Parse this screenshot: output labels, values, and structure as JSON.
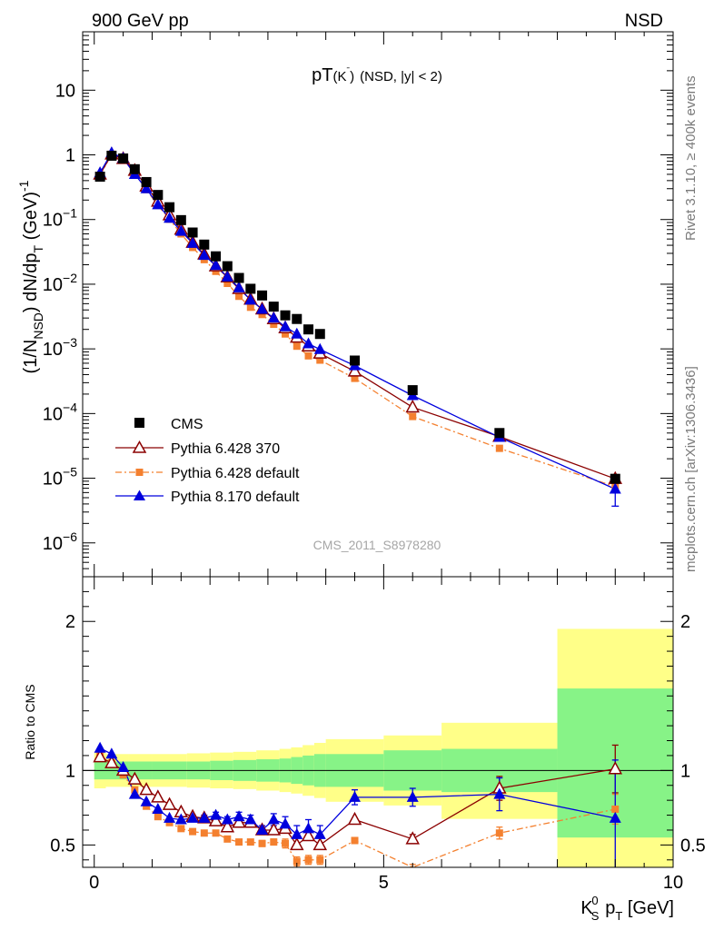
{
  "header": {
    "left_label": "900 GeV pp",
    "right_label": "NSD"
  },
  "side_labels": {
    "rivet": "Rivet 3.1.10, ≥ 400k events",
    "mcplots": "mcplots.cern.ch [arXiv:1306.3436]"
  },
  "colors": {
    "cms": "#000000",
    "pythia6_370": "#8b0000",
    "pythia6_default": "#f4802f",
    "pythia8_default": "#0000dd",
    "band_inner": "#87f387",
    "band_outer": "#ffff88"
  },
  "chart_data": [
    {
      "id": "main",
      "type": "scatter",
      "title": "pT(Kˉ) (NSD, |y| < 2)",
      "title_main": "pT",
      "title_particle": "(K",
      "title_particle_sup": "ˉ",
      "title_particle_close": ")",
      "title_selection": "(NSD, |y| < 2)",
      "ylabel": "(1/N_NSD) dN/dp_T (GeV)^-1",
      "ylabel_parts": {
        "a": "(1/N",
        "a_sub": "NSD",
        "b": ") dN/dp",
        "b_sub": "T",
        "c": " (GeV)",
        "c_sup": "-1"
      },
      "yscale": "log",
      "ylim": [
        3e-07,
        80
      ],
      "xlim": [
        -0.2,
        10
      ],
      "y_ticks": [
        {
          "v": 10,
          "base": "10",
          "exp": ""
        },
        {
          "v": 1,
          "base": "1",
          "exp": ""
        },
        {
          "v": 0.1,
          "base": "10",
          "exp": "−1"
        },
        {
          "v": 0.01,
          "base": "10",
          "exp": "−2"
        },
        {
          "v": 0.001,
          "base": "10",
          "exp": "−3"
        },
        {
          "v": 0.0001,
          "base": "10",
          "exp": "−4"
        },
        {
          "v": 1e-05,
          "base": "10",
          "exp": "−5"
        },
        {
          "v": 1e-06,
          "base": "10",
          "exp": "−6"
        }
      ],
      "watermark": "CMS_2011_S8978280",
      "legend_position": "lower-left",
      "x": [
        0.1,
        0.3,
        0.5,
        0.7,
        0.9,
        1.1,
        1.3,
        1.5,
        1.7,
        1.9,
        2.1,
        2.3,
        2.5,
        2.7,
        2.9,
        3.1,
        3.3,
        3.5,
        3.7,
        3.9,
        4.5,
        5.5,
        7.0,
        9.0
      ],
      "series": [
        {
          "name": "CMS",
          "style": "cms",
          "values": [
            0.46,
            0.97,
            0.88,
            0.6,
            0.38,
            0.24,
            0.155,
            0.098,
            0.063,
            0.041,
            0.027,
            0.019,
            0.0125,
            0.0085,
            0.0067,
            0.0045,
            0.0033,
            0.0029,
            0.002,
            0.0017,
            0.00066,
            0.00023,
            5e-05,
            9.8e-06
          ]
        },
        {
          "name": "Pythia 6.428 370",
          "style": "pythia6_370",
          "values": [
            0.5,
            1.02,
            0.87,
            0.57,
            0.325,
            0.19,
            0.117,
            0.07,
            0.044,
            0.029,
            0.019,
            0.0128,
            0.0085,
            0.0058,
            0.0041,
            0.0029,
            0.0021,
            0.0015,
            0.0011,
            0.00085,
            0.00045,
            0.000125,
            4.4e-05,
            9.8e-06
          ]
        },
        {
          "name": "Pythia 6.428 default",
          "style": "pythia6_default",
          "values": [
            0.48,
            1.02,
            0.86,
            0.52,
            0.29,
            0.165,
            0.101,
            0.06,
            0.037,
            0.024,
            0.0158,
            0.0103,
            0.0065,
            0.0044,
            0.0034,
            0.0024,
            0.0017,
            0.0011,
            0.00078,
            0.00067,
            0.00035,
            9e-05,
            2.9e-05,
            7.4e-06
          ]
        },
        {
          "name": "Pythia 8.170 default",
          "style": "pythia8_default",
          "values": [
            0.53,
            1.08,
            0.89,
            0.5,
            0.3,
            0.17,
            0.105,
            0.066,
            0.043,
            0.028,
            0.0195,
            0.013,
            0.0088,
            0.0057,
            0.0041,
            0.003,
            0.0022,
            0.0017,
            0.0012,
            0.00098,
            0.00055,
            0.00019,
            4.3e-05,
            6.8e-06
          ],
          "err_high": [
            null,
            null,
            null,
            null,
            null,
            null,
            null,
            null,
            null,
            null,
            null,
            null,
            null,
            null,
            null,
            null,
            null,
            null,
            null,
            null,
            null,
            null,
            null,
            8.8e-06
          ],
          "err_low": [
            null,
            null,
            null,
            null,
            null,
            null,
            null,
            null,
            null,
            null,
            null,
            null,
            null,
            null,
            null,
            null,
            null,
            null,
            null,
            null,
            null,
            null,
            null,
            3.7e-06
          ]
        }
      ]
    },
    {
      "id": "ratio",
      "type": "scatter",
      "ylabel": "Ratio to CMS",
      "xlabel": "K_S^0 p_T [GeV]",
      "xlabel_parts": {
        "k": "K",
        "k_sub": "S",
        "k_sup": "0",
        "p": " p",
        "p_sub": "T",
        "unit": " [GeV]"
      },
      "ylim": [
        0.35,
        2.3
      ],
      "xlim": [
        -0.2,
        10
      ],
      "y_ticks": [
        {
          "v": 0.5,
          "label": "0.5"
        },
        {
          "v": 1,
          "label": "1"
        },
        {
          "v": 2,
          "label": "2"
        }
      ],
      "x_ticks": [
        {
          "v": 0,
          "label": "0"
        },
        {
          "v": 5,
          "label": "5"
        },
        {
          "v": 10,
          "label": "10"
        }
      ],
      "bands": [
        {
          "x0": 0,
          "x1": 0.2,
          "inner": [
            0.94,
            1.06
          ],
          "outer": [
            0.88,
            1.12
          ]
        },
        {
          "x0": 0.2,
          "x1": 0.6,
          "inner": [
            0.94,
            1.06
          ],
          "outer": [
            0.89,
            1.11
          ]
        },
        {
          "x0": 0.6,
          "x1": 1.0,
          "inner": [
            0.94,
            1.06
          ],
          "outer": [
            0.89,
            1.11
          ]
        },
        {
          "x0": 1.0,
          "x1": 1.6,
          "inner": [
            0.94,
            1.06
          ],
          "outer": [
            0.89,
            1.11
          ]
        },
        {
          "x0": 1.6,
          "x1": 2.0,
          "inner": [
            0.94,
            1.06
          ],
          "outer": [
            0.885,
            1.115
          ]
        },
        {
          "x0": 2.0,
          "x1": 2.4,
          "inner": [
            0.935,
            1.065
          ],
          "outer": [
            0.88,
            1.12
          ]
        },
        {
          "x0": 2.4,
          "x1": 2.8,
          "inner": [
            0.93,
            1.07
          ],
          "outer": [
            0.875,
            1.125
          ]
        },
        {
          "x0": 2.8,
          "x1": 3.2,
          "inner": [
            0.925,
            1.075
          ],
          "outer": [
            0.865,
            1.135
          ]
        },
        {
          "x0": 3.2,
          "x1": 3.4,
          "inner": [
            0.92,
            1.08
          ],
          "outer": [
            0.855,
            1.145
          ]
        },
        {
          "x0": 3.4,
          "x1": 3.6,
          "inner": [
            0.91,
            1.09
          ],
          "outer": [
            0.845,
            1.155
          ]
        },
        {
          "x0": 3.6,
          "x1": 3.8,
          "inner": [
            0.9,
            1.1
          ],
          "outer": [
            0.83,
            1.17
          ]
        },
        {
          "x0": 3.8,
          "x1": 4.0,
          "inner": [
            0.89,
            1.11
          ],
          "outer": [
            0.815,
            1.185
          ]
        },
        {
          "x0": 4.0,
          "x1": 5.0,
          "inner": [
            0.89,
            1.11
          ],
          "outer": [
            0.79,
            1.21
          ]
        },
        {
          "x0": 5.0,
          "x1": 6.0,
          "inner": [
            0.865,
            1.135
          ],
          "outer": [
            0.765,
            1.235
          ]
        },
        {
          "x0": 6.0,
          "x1": 8.0,
          "inner": [
            0.855,
            1.145
          ],
          "outer": [
            0.675,
            1.32
          ]
        },
        {
          "x0": 8.0,
          "x1": 10.0,
          "inner": [
            0.55,
            1.55
          ],
          "outer": [
            0.3,
            1.95
          ]
        }
      ],
      "x": [
        0.1,
        0.3,
        0.5,
        0.7,
        0.9,
        1.1,
        1.3,
        1.5,
        1.7,
        1.9,
        2.1,
        2.3,
        2.5,
        2.7,
        2.9,
        3.1,
        3.3,
        3.5,
        3.7,
        3.9,
        4.5,
        5.5,
        7.0,
        9.0
      ],
      "series": [
        {
          "name": "Pythia 6.428 370",
          "style": "pythia6_370",
          "values": [
            1.09,
            1.05,
            1.0,
            0.94,
            0.87,
            0.82,
            0.77,
            0.72,
            0.69,
            0.68,
            0.66,
            0.62,
            0.65,
            0.65,
            0.6,
            0.6,
            0.61,
            0.5,
            0.56,
            0.5,
            0.67,
            0.54,
            0.88,
            1.01
          ],
          "err": [
            0,
            0,
            0,
            0,
            0,
            0,
            0,
            0,
            0,
            0,
            0,
            0,
            0,
            0,
            0,
            0,
            0,
            0,
            0,
            0,
            0,
            0.03,
            0.08,
            0.16
          ]
        },
        {
          "name": "Pythia 6.428 default",
          "style": "pythia6_default",
          "values": [
            1.1,
            1.05,
            0.97,
            0.87,
            0.76,
            0.69,
            0.65,
            0.61,
            0.59,
            0.58,
            0.58,
            0.54,
            0.52,
            0.52,
            0.51,
            0.52,
            0.51,
            0.39,
            0.4,
            0.4,
            0.53,
            0.34,
            0.58,
            0.74
          ],
          "err": [
            0,
            0,
            0,
            0,
            0,
            0,
            0,
            0,
            0,
            0,
            0,
            0,
            0,
            0,
            0.02,
            0.02,
            0.03,
            0.03,
            0.03,
            0.03,
            0.02,
            0.03,
            0.04,
            0.1
          ]
        },
        {
          "name": "Pythia 8.170 default",
          "style": "pythia8_default",
          "values": [
            1.15,
            1.11,
            1.02,
            0.84,
            0.79,
            0.74,
            0.68,
            0.67,
            0.68,
            0.68,
            0.7,
            0.67,
            0.69,
            0.67,
            0.6,
            0.67,
            0.64,
            0.57,
            0.61,
            0.57,
            0.82,
            0.82,
            0.84,
            0.68
          ],
          "err": [
            0,
            0,
            0,
            0,
            0,
            0,
            0,
            0.02,
            0.02,
            0.02,
            0.02,
            0.02,
            0.03,
            0.03,
            0.03,
            0.04,
            0.05,
            0.06,
            0.06,
            0.06,
            0.05,
            0.06,
            0.11,
            0.39
          ]
        }
      ]
    }
  ]
}
